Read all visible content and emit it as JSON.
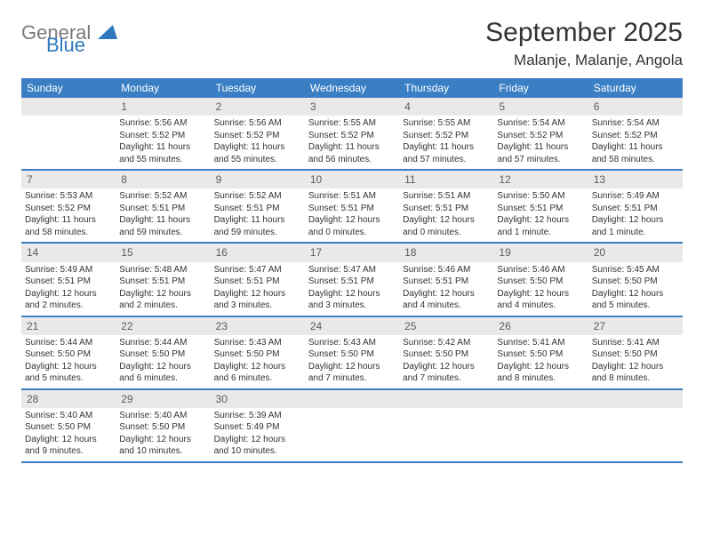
{
  "logo": {
    "general": "General",
    "blue": "Blue"
  },
  "header": {
    "title": "September 2025",
    "location": "Malanje, Malanje, Angola"
  },
  "colors": {
    "header_bar": "#3a7fc4",
    "daynum_bg": "#e9e9e9",
    "text": "#333333",
    "logo_gray": "#7a7a7a",
    "logo_blue": "#2f78bf"
  },
  "weekdays": [
    "Sunday",
    "Monday",
    "Tuesday",
    "Wednesday",
    "Thursday",
    "Friday",
    "Saturday"
  ],
  "weeks": [
    [
      null,
      {
        "n": "1",
        "sr": "Sunrise: 5:56 AM",
        "ss": "Sunset: 5:52 PM",
        "dl1": "Daylight: 11 hours",
        "dl2": "and 55 minutes."
      },
      {
        "n": "2",
        "sr": "Sunrise: 5:56 AM",
        "ss": "Sunset: 5:52 PM",
        "dl1": "Daylight: 11 hours",
        "dl2": "and 55 minutes."
      },
      {
        "n": "3",
        "sr": "Sunrise: 5:55 AM",
        "ss": "Sunset: 5:52 PM",
        "dl1": "Daylight: 11 hours",
        "dl2": "and 56 minutes."
      },
      {
        "n": "4",
        "sr": "Sunrise: 5:55 AM",
        "ss": "Sunset: 5:52 PM",
        "dl1": "Daylight: 11 hours",
        "dl2": "and 57 minutes."
      },
      {
        "n": "5",
        "sr": "Sunrise: 5:54 AM",
        "ss": "Sunset: 5:52 PM",
        "dl1": "Daylight: 11 hours",
        "dl2": "and 57 minutes."
      },
      {
        "n": "6",
        "sr": "Sunrise: 5:54 AM",
        "ss": "Sunset: 5:52 PM",
        "dl1": "Daylight: 11 hours",
        "dl2": "and 58 minutes."
      }
    ],
    [
      {
        "n": "7",
        "sr": "Sunrise: 5:53 AM",
        "ss": "Sunset: 5:52 PM",
        "dl1": "Daylight: 11 hours",
        "dl2": "and 58 minutes."
      },
      {
        "n": "8",
        "sr": "Sunrise: 5:52 AM",
        "ss": "Sunset: 5:51 PM",
        "dl1": "Daylight: 11 hours",
        "dl2": "and 59 minutes."
      },
      {
        "n": "9",
        "sr": "Sunrise: 5:52 AM",
        "ss": "Sunset: 5:51 PM",
        "dl1": "Daylight: 11 hours",
        "dl2": "and 59 minutes."
      },
      {
        "n": "10",
        "sr": "Sunrise: 5:51 AM",
        "ss": "Sunset: 5:51 PM",
        "dl1": "Daylight: 12 hours",
        "dl2": "and 0 minutes."
      },
      {
        "n": "11",
        "sr": "Sunrise: 5:51 AM",
        "ss": "Sunset: 5:51 PM",
        "dl1": "Daylight: 12 hours",
        "dl2": "and 0 minutes."
      },
      {
        "n": "12",
        "sr": "Sunrise: 5:50 AM",
        "ss": "Sunset: 5:51 PM",
        "dl1": "Daylight: 12 hours",
        "dl2": "and 1 minute."
      },
      {
        "n": "13",
        "sr": "Sunrise: 5:49 AM",
        "ss": "Sunset: 5:51 PM",
        "dl1": "Daylight: 12 hours",
        "dl2": "and 1 minute."
      }
    ],
    [
      {
        "n": "14",
        "sr": "Sunrise: 5:49 AM",
        "ss": "Sunset: 5:51 PM",
        "dl1": "Daylight: 12 hours",
        "dl2": "and 2 minutes."
      },
      {
        "n": "15",
        "sr": "Sunrise: 5:48 AM",
        "ss": "Sunset: 5:51 PM",
        "dl1": "Daylight: 12 hours",
        "dl2": "and 2 minutes."
      },
      {
        "n": "16",
        "sr": "Sunrise: 5:47 AM",
        "ss": "Sunset: 5:51 PM",
        "dl1": "Daylight: 12 hours",
        "dl2": "and 3 minutes."
      },
      {
        "n": "17",
        "sr": "Sunrise: 5:47 AM",
        "ss": "Sunset: 5:51 PM",
        "dl1": "Daylight: 12 hours",
        "dl2": "and 3 minutes."
      },
      {
        "n": "18",
        "sr": "Sunrise: 5:46 AM",
        "ss": "Sunset: 5:51 PM",
        "dl1": "Daylight: 12 hours",
        "dl2": "and 4 minutes."
      },
      {
        "n": "19",
        "sr": "Sunrise: 5:46 AM",
        "ss": "Sunset: 5:50 PM",
        "dl1": "Daylight: 12 hours",
        "dl2": "and 4 minutes."
      },
      {
        "n": "20",
        "sr": "Sunrise: 5:45 AM",
        "ss": "Sunset: 5:50 PM",
        "dl1": "Daylight: 12 hours",
        "dl2": "and 5 minutes."
      }
    ],
    [
      {
        "n": "21",
        "sr": "Sunrise: 5:44 AM",
        "ss": "Sunset: 5:50 PM",
        "dl1": "Daylight: 12 hours",
        "dl2": "and 5 minutes."
      },
      {
        "n": "22",
        "sr": "Sunrise: 5:44 AM",
        "ss": "Sunset: 5:50 PM",
        "dl1": "Daylight: 12 hours",
        "dl2": "and 6 minutes."
      },
      {
        "n": "23",
        "sr": "Sunrise: 5:43 AM",
        "ss": "Sunset: 5:50 PM",
        "dl1": "Daylight: 12 hours",
        "dl2": "and 6 minutes."
      },
      {
        "n": "24",
        "sr": "Sunrise: 5:43 AM",
        "ss": "Sunset: 5:50 PM",
        "dl1": "Daylight: 12 hours",
        "dl2": "and 7 minutes."
      },
      {
        "n": "25",
        "sr": "Sunrise: 5:42 AM",
        "ss": "Sunset: 5:50 PM",
        "dl1": "Daylight: 12 hours",
        "dl2": "and 7 minutes."
      },
      {
        "n": "26",
        "sr": "Sunrise: 5:41 AM",
        "ss": "Sunset: 5:50 PM",
        "dl1": "Daylight: 12 hours",
        "dl2": "and 8 minutes."
      },
      {
        "n": "27",
        "sr": "Sunrise: 5:41 AM",
        "ss": "Sunset: 5:50 PM",
        "dl1": "Daylight: 12 hours",
        "dl2": "and 8 minutes."
      }
    ],
    [
      {
        "n": "28",
        "sr": "Sunrise: 5:40 AM",
        "ss": "Sunset: 5:50 PM",
        "dl1": "Daylight: 12 hours",
        "dl2": "and 9 minutes."
      },
      {
        "n": "29",
        "sr": "Sunrise: 5:40 AM",
        "ss": "Sunset: 5:50 PM",
        "dl1": "Daylight: 12 hours",
        "dl2": "and 10 minutes."
      },
      {
        "n": "30",
        "sr": "Sunrise: 5:39 AM",
        "ss": "Sunset: 5:49 PM",
        "dl1": "Daylight: 12 hours",
        "dl2": "and 10 minutes."
      },
      null,
      null,
      null,
      null
    ]
  ]
}
